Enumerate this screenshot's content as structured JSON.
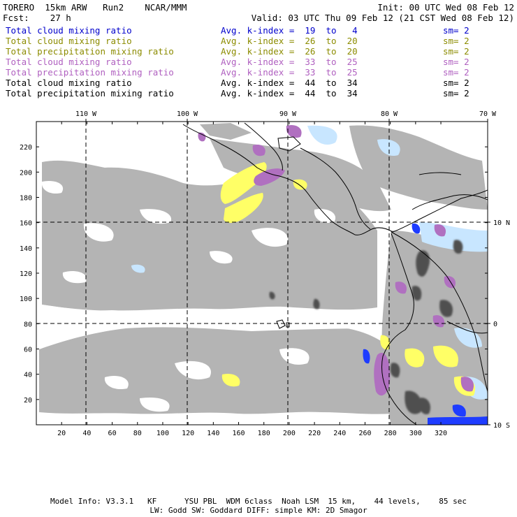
{
  "header": {
    "model_line": "TORERO  15km ARW   Run2    NCAR/MMM",
    "init_line": "Init: 00 UTC Wed 08 Feb 12",
    "fcst_line": "Fcst:    27 h",
    "valid_line": "Valid: 03 UTC Thu 09 Feb 12 (21 CST Wed 08 Feb 12)"
  },
  "fields": [
    {
      "name": "Total cloud mixing ratio",
      "kindex": "Avg. k-index =  19  to   4",
      "sm": "sm= 2",
      "color": "#0000cc"
    },
    {
      "name": "Total cloud mixing ratio",
      "kindex": "Avg. k-index =  26  to  20",
      "sm": "sm= 2",
      "color": "#8c8c00"
    },
    {
      "name": "Total precipitation mixing ratio",
      "kindex": "Avg. k-index =  26  to  20",
      "sm": "sm= 2",
      "color": "#8c8c00"
    },
    {
      "name": "Total cloud mixing ratio",
      "kindex": "Avg. k-index =  33  to  25",
      "sm": "sm= 2",
      "color": "#b060c0"
    },
    {
      "name": "Total precipitation mixing ratio",
      "kindex": "Avg. k-index =  33  to  25",
      "sm": "sm= 2",
      "color": "#b060c0"
    },
    {
      "name": "Total cloud mixing ratio",
      "kindex": "Avg. k-index =  44  to  34",
      "sm": "sm= 2",
      "color": "#000000"
    },
    {
      "name": "Total precipitation mixing ratio",
      "kindex": "Avg. k-index =  44  to  34",
      "sm": "sm= 2",
      "color": "#000000"
    }
  ],
  "map": {
    "x_ticks": [
      "20",
      "40",
      "60",
      "80",
      "100",
      "120",
      "140",
      "160",
      "180",
      "200",
      "220",
      "240",
      "260",
      "280",
      "300",
      "320"
    ],
    "y_ticks": [
      "20",
      "40",
      "60",
      "80",
      "100",
      "120",
      "140",
      "160",
      "180",
      "200",
      "220"
    ],
    "lon_labels": [
      "110 W",
      "100 W",
      "90 W",
      "80 W",
      "70 W"
    ],
    "lat_labels": [
      "10 N",
      "0",
      "10 S"
    ],
    "colors": {
      "gray_cloud": "#b4b4b4",
      "dark_cloud": "#505050",
      "yellow": "#ffff66",
      "purple": "#b070c0",
      "light_blue": "#c8e6ff",
      "blue": "#1e3cff",
      "coast": "#000000",
      "grid": "#000000"
    }
  },
  "footer": {
    "line1": "Model Info: V3.3.1   KF      YSU PBL  WDM 6class  Noah LSM  15 km,    44 levels,    85 sec",
    "line2": "LW: Godd SW: Goddard DIFF: simple KM: 2D Smagor"
  }
}
